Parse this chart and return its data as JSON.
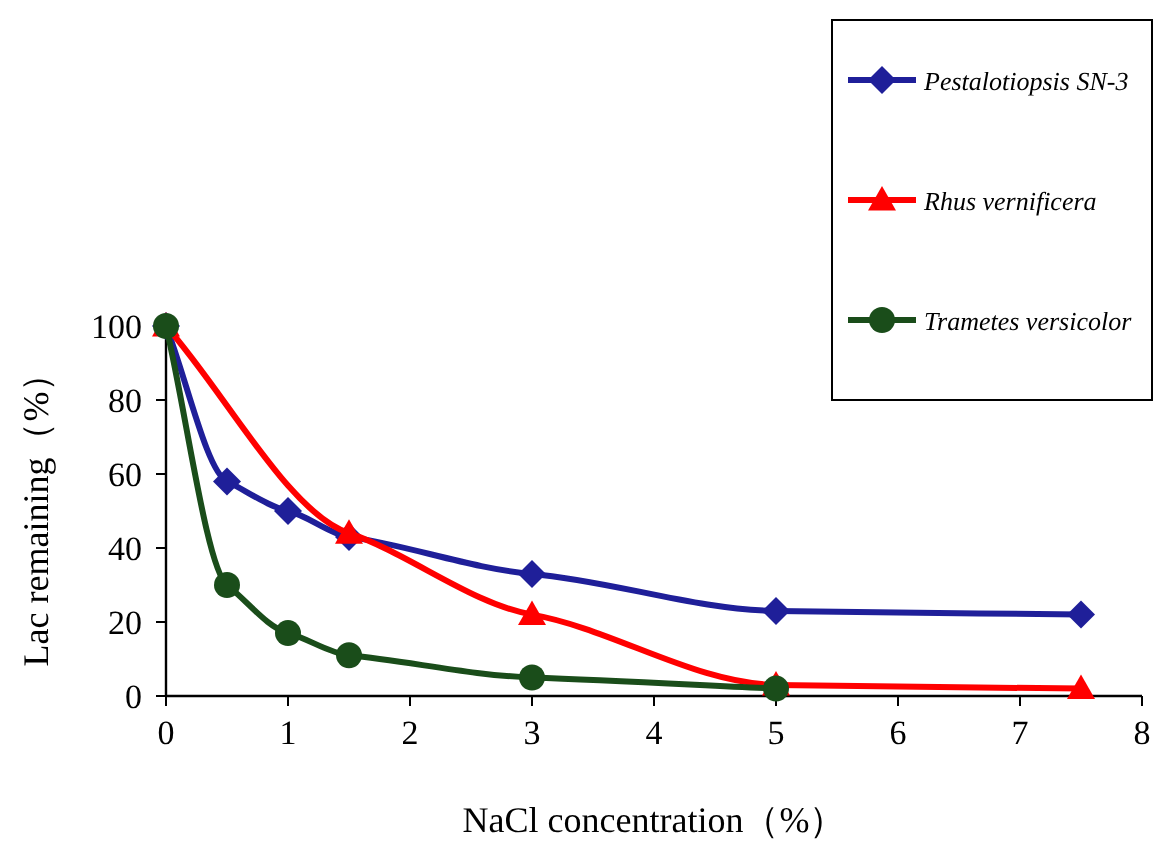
{
  "chart_data": {
    "type": "line",
    "xlabel": "NaCl concentration（%）",
    "ylabel": "Lac remaining（%）",
    "xlim": [
      0,
      8
    ],
    "xticks": [
      0,
      1,
      2,
      3,
      4,
      5,
      6,
      7,
      8
    ],
    "ylim": [
      0,
      100
    ],
    "yticks": [
      0,
      20,
      40,
      60,
      80,
      100
    ],
    "grid": false,
    "legend": "top right",
    "line_style": "solid",
    "series": [
      {
        "name": "Pestalotiopsis SN-3",
        "color": "#1f1f99",
        "marker": "diamond",
        "x": [
          0,
          0.5,
          1,
          1.5,
          3,
          5,
          7.5
        ],
        "values": [
          100,
          58,
          50,
          43,
          33,
          23,
          22
        ]
      },
      {
        "name": "Rhus vernificera",
        "color": "#ff0000",
        "marker": "triangle",
        "x": [
          0,
          1.5,
          3,
          5,
          7.5
        ],
        "values": [
          100,
          44,
          22,
          3,
          2
        ]
      },
      {
        "name": "Trametes versicolor",
        "color": "#1a4d1a",
        "marker": "circle",
        "x": [
          0,
          0.5,
          1,
          1.5,
          3,
          5
        ],
        "values": [
          100,
          30,
          17,
          11,
          5,
          2
        ]
      }
    ]
  }
}
